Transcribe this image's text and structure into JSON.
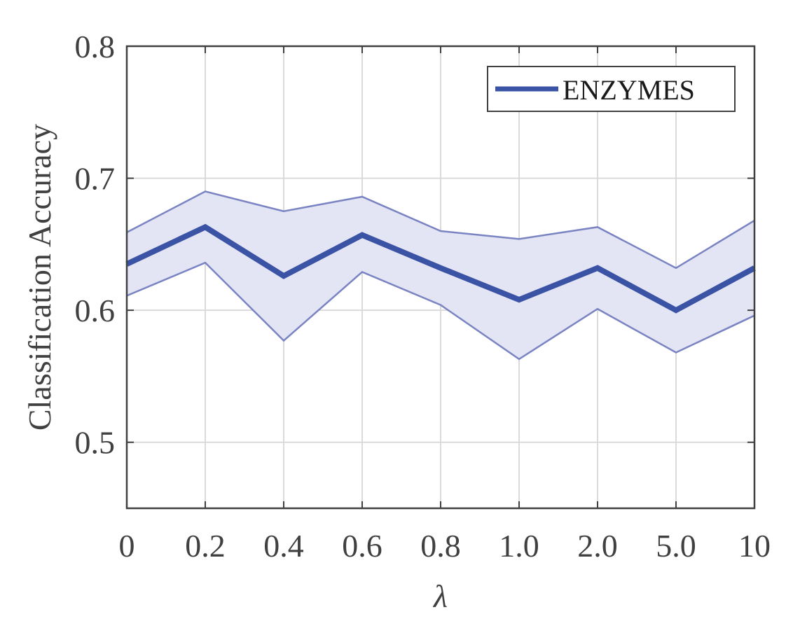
{
  "chart_data": {
    "type": "line",
    "categories": [
      "0",
      "0.2",
      "0.4",
      "0.6",
      "0.8",
      "1.0",
      "2.0",
      "5.0",
      "10"
    ],
    "xlabel": "λ",
    "ylabel": "Classification Accuracy",
    "ylim": [
      0.45,
      0.8
    ],
    "yticks": [
      "0.5",
      "0.6",
      "0.7",
      "0.8"
    ],
    "grid": true,
    "legend_position": "top-right",
    "series": [
      {
        "name": "ENZYMES",
        "values": [
          0.635,
          0.663,
          0.626,
          0.657,
          0.632,
          0.608,
          0.632,
          0.6,
          0.632
        ],
        "upper": [
          0.659,
          0.69,
          0.675,
          0.686,
          0.66,
          0.654,
          0.663,
          0.632,
          0.668
        ],
        "lower": [
          0.611,
          0.636,
          0.577,
          0.629,
          0.604,
          0.563,
          0.601,
          0.568,
          0.596
        ],
        "color": "#3a53a4",
        "band_fill": "#e3e4f4",
        "band_edge": "#7a84c2"
      }
    ]
  }
}
